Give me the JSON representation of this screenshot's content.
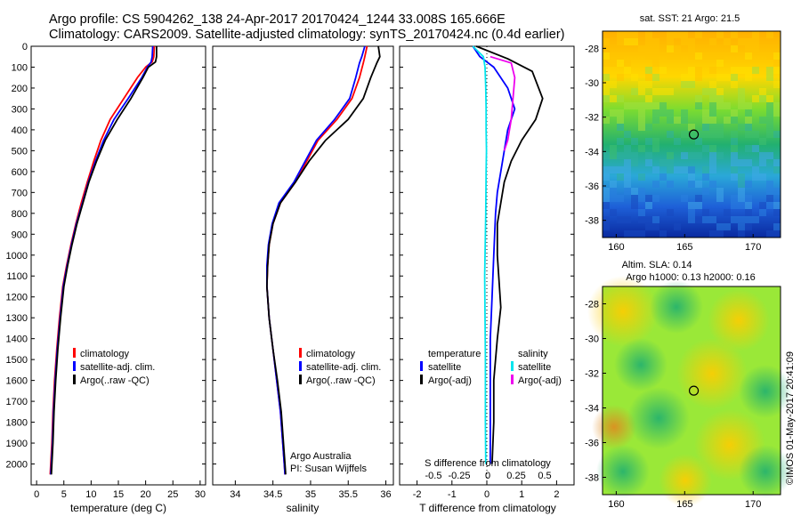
{
  "header": {
    "line1": "Argo profile: CS 5904262_138 24-Apr-2017 20170424_1244 33.008S 165.666E",
    "line2": "Climatology: CARS2009. Satellite-adjusted climatology: synTS_20170424.nc (0.4d earlier)"
  },
  "side_credit": "©IMOS 01-May-2017 20:41:09",
  "colors": {
    "climatology": "#ff0000",
    "satellite": "#0000ff",
    "argo": "#000000",
    "salinity_satellite": "#00e5ee",
    "salinity_argo": "#ee00ee"
  },
  "chart_data": [
    {
      "type": "line",
      "panel": "temperature",
      "xlabel": "temperature (deg C)",
      "ylabel": "",
      "xlim": [
        -1,
        31
      ],
      "ylim": [
        2100,
        0
      ],
      "xticks": [
        "0",
        "5",
        "10",
        "15",
        "20",
        "25",
        "30"
      ],
      "yticks": [
        "0",
        "100",
        "200",
        "300",
        "400",
        "500",
        "600",
        "700",
        "800",
        "900",
        "1000",
        "1100",
        "1200",
        "1300",
        "1400",
        "1500",
        "1600",
        "1700",
        "1800",
        "1900",
        "2000"
      ],
      "legend": [
        "climatology",
        "satellite-adj. clim.",
        "Argo(..raw -QC)"
      ],
      "series": [
        {
          "name": "climatology",
          "color": "#ff0000",
          "x": [
            21.6,
            21.5,
            21.2,
            20.0,
            18.5,
            16.0,
            13.5,
            11.8,
            10.5,
            9.3,
            8.2,
            7.2,
            6.3,
            5.5,
            4.8,
            4.2,
            3.7,
            3.3,
            3.0,
            2.8,
            2.6,
            2.5
          ],
          "y": [
            0,
            50,
            75,
            100,
            150,
            250,
            350,
            450,
            550,
            650,
            750,
            850,
            950,
            1050,
            1150,
            1300,
            1450,
            1600,
            1750,
            1900,
            2000,
            2050
          ]
        },
        {
          "name": "satellite-adj. clim.",
          "color": "#0000ff",
          "x": [
            21.3,
            21.2,
            21.0,
            20.3,
            19.3,
            16.8,
            14.2,
            12.3,
            10.8,
            9.5,
            8.4,
            7.3,
            6.4,
            5.6,
            4.9,
            4.3,
            3.8,
            3.4,
            3.1,
            2.9,
            2.7,
            2.6
          ],
          "y": [
            0,
            50,
            75,
            100,
            150,
            250,
            350,
            450,
            550,
            650,
            750,
            850,
            950,
            1050,
            1150,
            1300,
            1450,
            1600,
            1750,
            1900,
            2000,
            2050
          ]
        },
        {
          "name": "Argo(..raw -QC)",
          "color": "#000000",
          "x": [
            22.0,
            22.0,
            21.8,
            20.5,
            19.5,
            17.3,
            14.8,
            12.6,
            11.0,
            9.6,
            8.5,
            7.4,
            6.5,
            5.7,
            5.0,
            4.4,
            3.9,
            3.5,
            3.2,
            3.0,
            2.8,
            2.7
          ],
          "y": [
            0,
            50,
            75,
            100,
            150,
            250,
            350,
            450,
            550,
            650,
            750,
            850,
            950,
            1050,
            1150,
            1300,
            1450,
            1600,
            1750,
            1900,
            2000,
            2050
          ]
        }
      ]
    },
    {
      "type": "line",
      "panel": "salinity",
      "xlabel": "salinity",
      "ylabel": "",
      "xlim": [
        33.7,
        36.1
      ],
      "ylim": [
        2100,
        0
      ],
      "xticks": [
        "34",
        "34.5",
        "35",
        "35.5",
        "36"
      ],
      "legend": [
        "climatology",
        "satellite-adj. clim.",
        "Argo(..raw -QC)"
      ],
      "annotation": [
        "Argo Australia",
        "PI: Susan Wijffels"
      ],
      "series": [
        {
          "name": "climatology",
          "color": "#ff0000",
          "x": [
            35.75,
            35.72,
            35.7,
            35.65,
            35.55,
            35.35,
            35.1,
            34.95,
            34.8,
            34.6,
            34.5,
            34.45,
            34.43,
            34.42,
            34.45,
            34.5,
            34.55,
            34.6,
            34.63,
            34.65,
            34.66
          ],
          "y": [
            0,
            50,
            80,
            150,
            250,
            350,
            450,
            550,
            650,
            750,
            850,
            950,
            1050,
            1150,
            1300,
            1450,
            1600,
            1750,
            1900,
            2000,
            2050
          ]
        },
        {
          "name": "satellite-adj. clim.",
          "color": "#0000ff",
          "x": [
            35.72,
            35.68,
            35.65,
            35.6,
            35.52,
            35.32,
            35.08,
            34.93,
            34.78,
            34.58,
            34.49,
            34.44,
            34.42,
            34.42,
            34.45,
            34.5,
            34.55,
            34.6,
            34.63,
            34.65,
            34.66
          ],
          "y": [
            0,
            50,
            80,
            150,
            250,
            350,
            450,
            550,
            650,
            750,
            850,
            950,
            1050,
            1150,
            1300,
            1450,
            1600,
            1750,
            1900,
            2000,
            2050
          ]
        },
        {
          "name": "Argo(..raw -QC)",
          "color": "#000000",
          "x": [
            35.9,
            35.92,
            35.88,
            35.8,
            35.7,
            35.5,
            35.2,
            34.98,
            34.8,
            34.6,
            34.5,
            34.45,
            34.43,
            34.42,
            34.45,
            34.5,
            34.56,
            34.61,
            34.64,
            34.66,
            34.67
          ],
          "y": [
            0,
            50,
            80,
            150,
            250,
            350,
            450,
            550,
            650,
            750,
            850,
            950,
            1050,
            1150,
            1300,
            1450,
            1600,
            1750,
            1900,
            2000,
            2050
          ]
        }
      ]
    },
    {
      "type": "line",
      "panel": "difference",
      "xlabel": "T difference from climatology",
      "xlabel_top": "S difference from climatology",
      "xlim": [
        -2.5,
        2.5
      ],
      "ylim": [
        2100,
        0
      ],
      "xticks": [
        "-2",
        "-1",
        "0",
        "1",
        "2"
      ],
      "xticks_top": [
        "-0.5",
        "-0.25",
        "0",
        "0.25",
        "0.5"
      ],
      "legend_titles": [
        "temperature",
        "salinity"
      ],
      "legend": [
        "satellite",
        "Argo(-adj)",
        "satellite",
        "Argo(-adj)"
      ],
      "series": [
        {
          "name": "temperature satellite",
          "color": "#0000ff",
          "x": [
            -0.4,
            -0.2,
            0.2,
            0.6,
            0.8,
            0.6,
            0.5,
            0.4,
            0.3,
            0.25,
            0.2,
            0.15,
            0.1,
            0.1,
            0.1,
            0.1
          ],
          "y": [
            0,
            50,
            100,
            200,
            300,
            400,
            500,
            600,
            700,
            800,
            1000,
            1200,
            1400,
            1600,
            1800,
            2000
          ]
        },
        {
          "name": "temperature Argo(-adj)",
          "color": "#000000",
          "x": [
            -0.3,
            0.6,
            1.3,
            1.6,
            1.4,
            1.0,
            0.7,
            0.5,
            0.4,
            0.3,
            0.3,
            0.4,
            0.3,
            0.2,
            0.2,
            0.15
          ],
          "y": [
            0,
            60,
            120,
            250,
            350,
            450,
            550,
            650,
            750,
            850,
            1000,
            1250,
            1400,
            1600,
            1800,
            2000
          ]
        },
        {
          "name": "salinity satellite",
          "color": "#00e5ee",
          "x": [
            -0.4,
            -0.1,
            -0.05,
            -0.03,
            -0.02,
            -0.02,
            -0.01,
            -0.02,
            -0.03,
            -0.05,
            -0.06,
            -0.05,
            -0.04,
            -0.04,
            -0.03
          ],
          "y": [
            0,
            50,
            100,
            200,
            300,
            400,
            500,
            600,
            800,
            1000,
            1100,
            1300,
            1500,
            1800,
            2000
          ]
        },
        {
          "name": "salinity Argo(-adj)",
          "color": "#ee00ee",
          "x": [
            0.1,
            0.7,
            0.8,
            0.75,
            0.7,
            0.6,
            0.5
          ],
          "y": [
            50,
            80,
            150,
            250,
            350,
            450,
            500
          ]
        }
      ]
    },
    {
      "type": "heatmap",
      "panel": "sst",
      "title": "sat. SST: 21 Argo: 21.5",
      "xlim": [
        159,
        172
      ],
      "ylim": [
        -39,
        -27
      ],
      "xticks": [
        "160",
        "165",
        "170"
      ],
      "yticks": [
        "-28",
        "-30",
        "-32",
        "-34",
        "-36",
        "-38"
      ],
      "marker": {
        "lon": 165.666,
        "lat": -33.008
      }
    },
    {
      "type": "heatmap",
      "panel": "sla",
      "title": "Altim. SLA: 0.14",
      "subtitle": "Argo h1000: 0.13 h2000: 0.16",
      "xlim": [
        159,
        172
      ],
      "ylim": [
        -39,
        -27
      ],
      "xticks": [
        "160",
        "165",
        "170"
      ],
      "yticks": [
        "-28",
        "-30",
        "-32",
        "-34",
        "-36",
        "-38"
      ],
      "marker": {
        "lon": 165.666,
        "lat": -33.008
      }
    }
  ]
}
